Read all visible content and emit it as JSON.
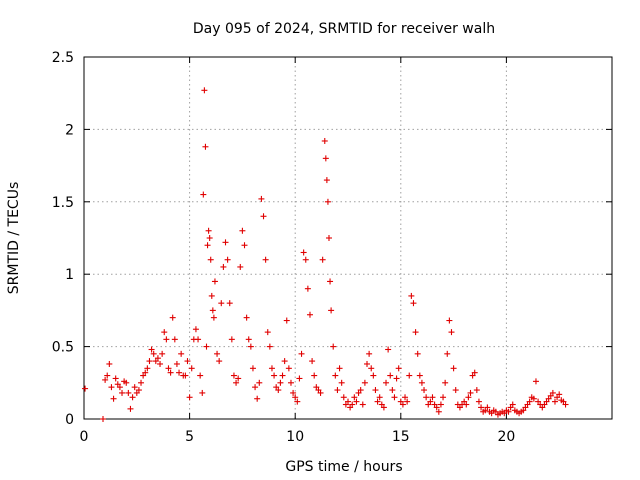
{
  "chart_data": {
    "type": "scatter",
    "title": "Day 095 of 2024, SRMTID for receiver walh",
    "xlabel": "GPS time / hours",
    "ylabel": "SRMTID / TECUs",
    "xlim": [
      0,
      25
    ],
    "ylim": [
      0,
      2.5
    ],
    "x_ticks": [
      0,
      5,
      10,
      15,
      20
    ],
    "x_tick_labels": [
      "0",
      "5",
      "10",
      "15",
      "20"
    ],
    "y_ticks": [
      0,
      0.5,
      1,
      1.5,
      2,
      2.5
    ],
    "y_tick_labels": [
      "0",
      "0.5",
      "1",
      "1.5",
      "2",
      "2.5"
    ],
    "grid": true,
    "marker": "+",
    "color": "#e00000",
    "series": [
      {
        "name": "walh",
        "x": [
          0.05,
          0.9,
          1.0,
          1.1,
          1.2,
          1.3,
          1.4,
          1.5,
          1.6,
          1.7,
          1.8,
          1.9,
          2.0,
          2.1,
          2.2,
          2.3,
          2.4,
          2.5,
          2.6,
          2.7,
          2.8,
          2.9,
          3.0,
          3.1,
          3.2,
          3.3,
          3.4,
          3.5,
          3.6,
          3.7,
          3.8,
          3.9,
          4.0,
          4.1,
          4.2,
          4.3,
          4.4,
          4.5,
          4.6,
          4.7,
          4.8,
          4.9,
          5.0,
          5.1,
          5.2,
          5.3,
          5.4,
          5.5,
          5.6,
          5.65,
          5.7,
          5.75,
          5.8,
          5.85,
          5.9,
          5.95,
          6.0,
          6.05,
          6.1,
          6.15,
          6.2,
          6.3,
          6.4,
          6.5,
          6.6,
          6.7,
          6.8,
          6.9,
          7.0,
          7.1,
          7.2,
          7.3,
          7.4,
          7.5,
          7.6,
          7.7,
          7.8,
          7.9,
          8.0,
          8.1,
          8.2,
          8.3,
          8.4,
          8.5,
          8.6,
          8.7,
          8.8,
          8.9,
          9.0,
          9.1,
          9.2,
          9.3,
          9.4,
          9.5,
          9.6,
          9.7,
          9.8,
          9.9,
          10.0,
          10.1,
          10.2,
          10.3,
          10.4,
          10.5,
          10.6,
          10.7,
          10.8,
          10.9,
          11.0,
          11.1,
          11.2,
          11.3,
          11.4,
          11.45,
          11.5,
          11.55,
          11.6,
          11.65,
          11.7,
          11.8,
          11.9,
          12.0,
          12.1,
          12.2,
          12.3,
          12.4,
          12.5,
          12.6,
          12.7,
          12.8,
          12.9,
          13.0,
          13.1,
          13.2,
          13.3,
          13.4,
          13.5,
          13.6,
          13.7,
          13.8,
          13.9,
          14.0,
          14.1,
          14.2,
          14.3,
          14.4,
          14.5,
          14.6,
          14.7,
          14.8,
          14.9,
          15.0,
          15.1,
          15.2,
          15.3,
          15.4,
          15.5,
          15.6,
          15.7,
          15.8,
          15.9,
          16.0,
          16.1,
          16.2,
          16.3,
          16.4,
          16.5,
          16.6,
          16.7,
          16.8,
          16.9,
          17.0,
          17.1,
          17.2,
          17.3,
          17.4,
          17.5,
          17.6,
          17.7,
          17.8,
          17.9,
          18.0,
          18.1,
          18.2,
          18.3,
          18.4,
          18.5,
          18.6,
          18.7,
          18.8,
          18.9,
          19.0,
          19.1,
          19.2,
          19.3,
          19.4,
          19.5,
          19.6,
          19.7,
          19.8,
          19.9,
          20.0,
          20.1,
          20.2,
          20.3,
          20.4,
          20.5,
          20.6,
          20.7,
          20.8,
          20.9,
          21.0,
          21.1,
          21.2,
          21.3,
          21.4,
          21.5,
          21.6,
          21.7,
          21.8,
          21.9,
          22.0,
          22.1,
          22.2,
          22.3,
          22.4,
          22.5,
          22.6,
          22.7,
          22.8
        ],
        "y": [
          0.21,
          0.0,
          0.27,
          0.3,
          0.38,
          0.22,
          0.14,
          0.28,
          0.24,
          0.22,
          0.18,
          0.26,
          0.25,
          0.18,
          0.07,
          0.15,
          0.22,
          0.18,
          0.2,
          0.25,
          0.3,
          0.32,
          0.35,
          0.4,
          0.48,
          0.45,
          0.4,
          0.42,
          0.38,
          0.45,
          0.6,
          0.55,
          0.35,
          0.32,
          0.7,
          0.55,
          0.38,
          0.32,
          0.45,
          0.3,
          0.3,
          0.4,
          0.15,
          0.35,
          0.55,
          0.62,
          0.55,
          0.3,
          0.18,
          1.55,
          2.27,
          1.88,
          0.5,
          1.2,
          1.3,
          1.25,
          1.1,
          0.85,
          0.75,
          0.7,
          0.95,
          0.45,
          0.4,
          0.8,
          1.05,
          1.22,
          1.1,
          0.8,
          0.55,
          0.3,
          0.25,
          0.28,
          1.05,
          1.3,
          1.2,
          0.7,
          0.55,
          0.5,
          0.35,
          0.22,
          0.14,
          0.25,
          1.52,
          1.4,
          1.1,
          0.6,
          0.5,
          0.35,
          0.3,
          0.22,
          0.2,
          0.25,
          0.3,
          0.4,
          0.68,
          0.35,
          0.25,
          0.18,
          0.15,
          0.12,
          0.28,
          0.45,
          1.15,
          1.1,
          0.9,
          0.72,
          0.4,
          0.3,
          0.22,
          0.2,
          0.18,
          1.1,
          1.92,
          1.8,
          1.65,
          1.5,
          1.25,
          0.95,
          0.75,
          0.5,
          0.3,
          0.2,
          0.35,
          0.25,
          0.15,
          0.1,
          0.12,
          0.08,
          0.1,
          0.15,
          0.12,
          0.18,
          0.2,
          0.1,
          0.25,
          0.38,
          0.45,
          0.35,
          0.3,
          0.2,
          0.12,
          0.15,
          0.1,
          0.08,
          0.25,
          0.48,
          0.3,
          0.2,
          0.15,
          0.28,
          0.35,
          0.12,
          0.1,
          0.15,
          0.12,
          0.3,
          0.85,
          0.8,
          0.6,
          0.45,
          0.3,
          0.25,
          0.2,
          0.15,
          0.1,
          0.12,
          0.15,
          0.1,
          0.08,
          0.05,
          0.1,
          0.15,
          0.25,
          0.45,
          0.68,
          0.6,
          0.35,
          0.2,
          0.1,
          0.08,
          0.1,
          0.12,
          0.1,
          0.15,
          0.18,
          0.3,
          0.32,
          0.2,
          0.12,
          0.08,
          0.05,
          0.06,
          0.08,
          0.05,
          0.04,
          0.06,
          0.05,
          0.03,
          0.04,
          0.05,
          0.04,
          0.06,
          0.05,
          0.08,
          0.1,
          0.06,
          0.05,
          0.04,
          0.05,
          0.06,
          0.08,
          0.1,
          0.12,
          0.15,
          0.14,
          0.26,
          0.12,
          0.1,
          0.08,
          0.1,
          0.12,
          0.14,
          0.16,
          0.18,
          0.12,
          0.15,
          0.17,
          0.13,
          0.12,
          0.1
        ]
      }
    ]
  }
}
